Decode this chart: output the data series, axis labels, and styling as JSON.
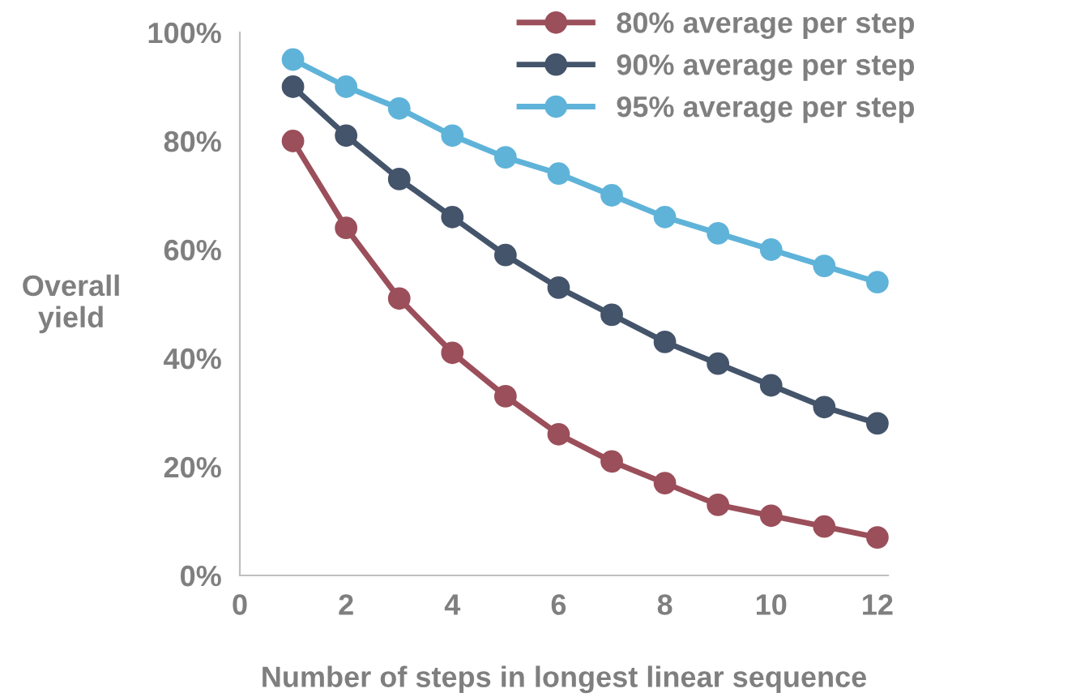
{
  "chart_data": {
    "type": "line",
    "xlabel": "Number of steps in longest linear sequence",
    "ylabel": "Overall\nyield",
    "x": [
      1,
      2,
      3,
      4,
      5,
      6,
      7,
      8,
      9,
      10,
      11,
      12
    ],
    "series": [
      {
        "name": "80% average per step",
        "color": "#9b4f5a",
        "values": [
          80,
          64,
          51,
          41,
          33,
          26,
          21,
          17,
          13,
          11,
          9,
          7
        ]
      },
      {
        "name": "90% average per step",
        "color": "#44546a",
        "values": [
          90,
          81,
          73,
          66,
          59,
          53,
          48,
          43,
          39,
          35,
          31,
          28
        ]
      },
      {
        "name": "95% average per step",
        "color": "#5fb3d9",
        "values": [
          95,
          90,
          86,
          81,
          77,
          74,
          70,
          66,
          63,
          60,
          57,
          54
        ]
      }
    ],
    "xlim": [
      0,
      12.2
    ],
    "xticks": [
      0,
      2,
      4,
      6,
      8,
      10,
      12
    ],
    "ylim": [
      0,
      100
    ],
    "yticks": [
      {
        "value": 0,
        "label": "0%"
      },
      {
        "value": 20,
        "label": "20%"
      },
      {
        "value": 40,
        "label": "40%"
      },
      {
        "value": 60,
        "label": "60%"
      },
      {
        "value": 80,
        "label": "80%"
      },
      {
        "value": 100,
        "label": "100%"
      }
    ],
    "marker": "circle",
    "line_style": "solid",
    "legend": "top right",
    "grid": false
  }
}
